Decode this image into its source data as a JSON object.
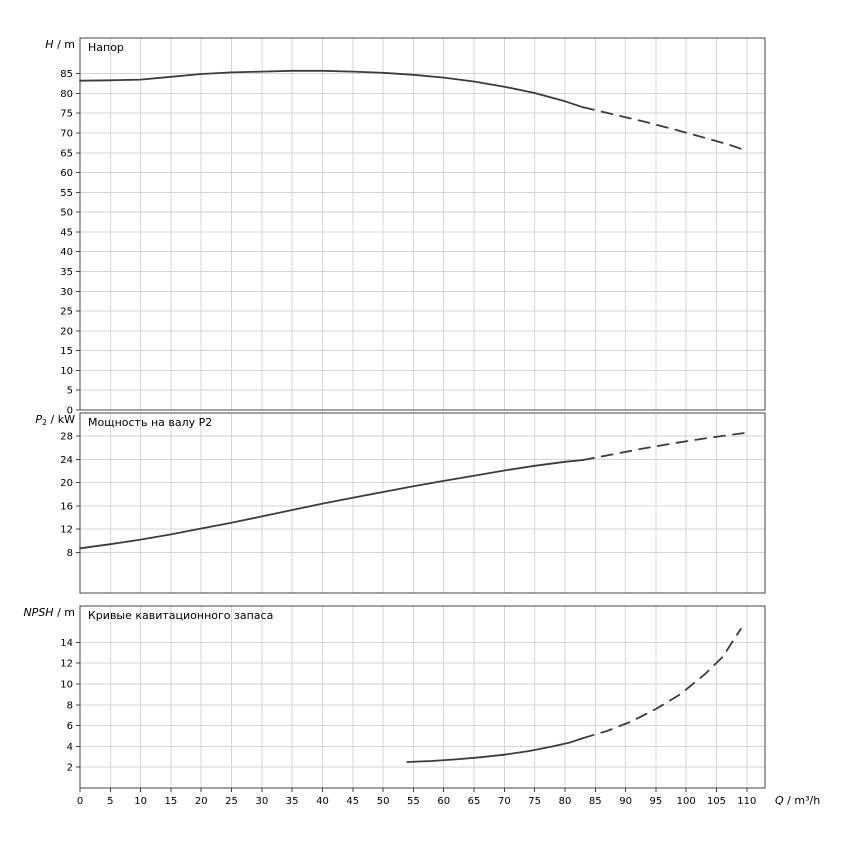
{
  "page": {
    "background": "#ffffff"
  },
  "chart_data": {
    "type": "line",
    "xlabel": {
      "variable": "Q",
      "sub": "",
      "unit": "/ m³/h"
    },
    "x": {
      "xlim": [
        0,
        113
      ],
      "xticks": [
        0,
        5,
        10,
        15,
        20,
        25,
        30,
        35,
        40,
        45,
        50,
        55,
        60,
        65,
        70,
        75,
        80,
        85,
        90,
        95,
        100,
        105,
        110
      ]
    },
    "colors": {
      "curve": "#3c3c3c",
      "grid": "#d6d6d6",
      "border": "#444444",
      "text": "#000000"
    },
    "panels": [
      {
        "id": "head",
        "title": "Напор",
        "ylabel": {
          "variable": "H",
          "sub": "",
          "unit": "/ m"
        },
        "ylim": [
          0,
          94
        ],
        "yticks": [
          0,
          5,
          10,
          15,
          20,
          25,
          30,
          35,
          40,
          45,
          50,
          55,
          60,
          65,
          70,
          75,
          80,
          85
        ],
        "series": [
          {
            "name": "head-solid",
            "style": "solid",
            "points": [
              [
                0,
                83.2
              ],
              [
                5,
                83.3
              ],
              [
                10,
                83.5
              ],
              [
                15,
                84.2
              ],
              [
                20,
                84.9
              ],
              [
                25,
                85.3
              ],
              [
                30,
                85.5
              ],
              [
                35,
                85.7
              ],
              [
                40,
                85.7
              ],
              [
                45,
                85.5
              ],
              [
                50,
                85.2
              ],
              [
                55,
                84.7
              ],
              [
                60,
                84.0
              ],
              [
                65,
                83.0
              ],
              [
                70,
                81.7
              ],
              [
                75,
                80.1
              ],
              [
                80,
                78.0
              ],
              [
                83,
                76.5
              ]
            ]
          },
          {
            "name": "head-extrapolated",
            "style": "dashed",
            "points": [
              [
                83,
                76.5
              ],
              [
                88,
                74.7
              ],
              [
                93,
                72.9
              ],
              [
                98,
                70.9
              ],
              [
                103,
                68.8
              ],
              [
                107,
                67.1
              ],
              [
                110,
                65.5
              ]
            ]
          }
        ]
      },
      {
        "id": "power",
        "title": "Мощность на валу P2",
        "ylabel": {
          "variable": "P",
          "sub": "2",
          "unit": "/ kW"
        },
        "ylim": [
          1,
          32
        ],
        "yticks": [
          8,
          12,
          16,
          20,
          24,
          28
        ],
        "series": [
          {
            "name": "power-solid",
            "style": "solid",
            "points": [
              [
                0,
                8.7
              ],
              [
                5,
                9.4
              ],
              [
                10,
                10.2
              ],
              [
                15,
                11.1
              ],
              [
                20,
                12.1
              ],
              [
                25,
                13.1
              ],
              [
                30,
                14.2
              ],
              [
                35,
                15.3
              ],
              [
                40,
                16.4
              ],
              [
                45,
                17.4
              ],
              [
                50,
                18.4
              ],
              [
                55,
                19.4
              ],
              [
                60,
                20.3
              ],
              [
                65,
                21.2
              ],
              [
                70,
                22.1
              ],
              [
                75,
                22.9
              ],
              [
                80,
                23.6
              ],
              [
                83,
                23.9
              ]
            ]
          },
          {
            "name": "power-extrapolated",
            "style": "dashed",
            "points": [
              [
                83,
                23.9
              ],
              [
                88,
                24.9
              ],
              [
                93,
                25.9
              ],
              [
                98,
                26.8
              ],
              [
                103,
                27.6
              ],
              [
                107,
                28.2
              ],
              [
                110,
                28.6
              ]
            ]
          }
        ]
      },
      {
        "id": "npsh",
        "title": "Кривые кавитационного запаса",
        "ylabel": {
          "variable": "NPSH",
          "sub": "",
          "unit": "/ m"
        },
        "ylim": [
          0,
          17.5
        ],
        "yticks": [
          2,
          4,
          6,
          8,
          10,
          12,
          14
        ],
        "series": [
          {
            "name": "npsh-solid",
            "style": "solid",
            "points": [
              [
                54,
                2.5
              ],
              [
                58,
                2.6
              ],
              [
                62,
                2.75
              ],
              [
                66,
                2.95
              ],
              [
                70,
                3.2
              ],
              [
                74,
                3.55
              ],
              [
                78,
                4.0
              ],
              [
                81,
                4.4
              ],
              [
                83,
                4.8
              ]
            ]
          },
          {
            "name": "npsh-extrapolated",
            "style": "dashed",
            "points": [
              [
                83,
                4.8
              ],
              [
                87,
                5.5
              ],
              [
                91,
                6.4
              ],
              [
                95,
                7.6
              ],
              [
                99,
                9.0
              ],
              [
                103,
                10.9
              ],
              [
                106,
                12.6
              ],
              [
                109,
                15.3
              ]
            ]
          }
        ]
      }
    ]
  }
}
